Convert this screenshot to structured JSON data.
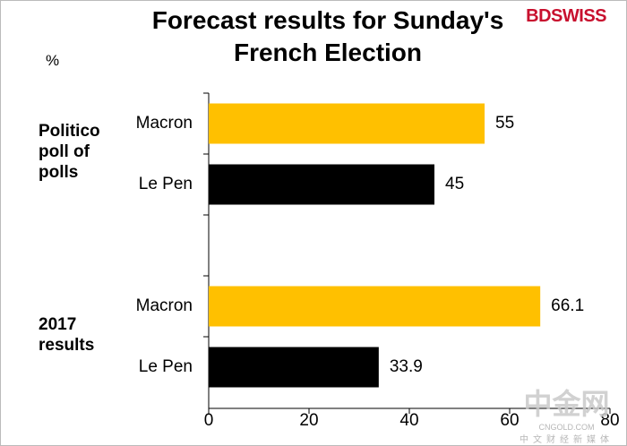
{
  "chart_data": {
    "type": "hbar",
    "title": "Forecast results for Sunday's French Election",
    "unit": "%",
    "brand": "BDSWISS",
    "colors": [
      "#ffc000",
      "#000000"
    ],
    "groups": [
      {
        "label": "Politico poll of polls",
        "categories": [
          "Macron",
          "Le Pen"
        ],
        "values": [
          55,
          45
        ]
      },
      {
        "label": "2017 results",
        "categories": [
          "Macron",
          "Le Pen"
        ],
        "values": [
          66.1,
          33.9
        ]
      }
    ],
    "xlim": [
      0,
      80
    ],
    "xticks": [
      0,
      20,
      40,
      60,
      80
    ],
    "watermark": {
      "name": "中金网",
      "url": "CNGOLD.COM",
      "tagline": "中文财经新媒体"
    }
  }
}
